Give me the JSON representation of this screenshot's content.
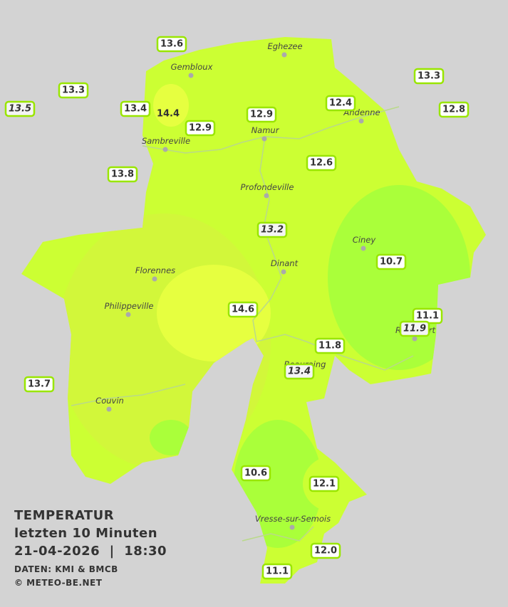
{
  "legend": {
    "title": "TEMPERATUR",
    "subtitle": "letzten 10 Minuten",
    "datetime": "21-04-2026  |  18:30",
    "source": "DATEN: KMI & BMCB",
    "copyright": "© METEO-BE.NET"
  },
  "cities": [
    "Eghezee",
    "Gembloux",
    "Sambreville",
    "Namur",
    "Andenne",
    "Profondeville",
    "Ciney",
    "Dinant",
    "Florennes",
    "Philippeville",
    "Couvin",
    "Vresse-sur-Semois",
    "Rochefort",
    "Beauraing"
  ],
  "stations": [
    "13.6",
    "13.3",
    "13.5",
    "13.4",
    "14.4",
    "12.9",
    "12.9",
    "12.4",
    "13.3",
    "12.8",
    "13.8",
    "12.6",
    "13.2",
    "10.7",
    "14.6",
    "11.1",
    "11.9",
    "11.8",
    "13.4",
    "13.7",
    "10.6",
    "12.1",
    "12.0",
    "11.1"
  ]
}
